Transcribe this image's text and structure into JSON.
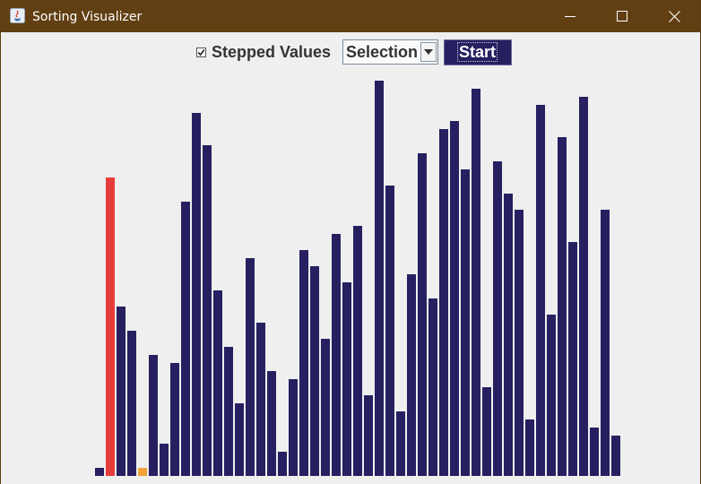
{
  "window": {
    "title": "Sorting Visualizer"
  },
  "controls": {
    "stepped_label": "Stepped Values",
    "stepped_checked": true,
    "algorithm_selected": "Selection",
    "start_label": "Start"
  },
  "colors": {
    "bar_default": "#262060",
    "bar_current": "#e63d3a",
    "bar_compare": "#f5a339"
  },
  "chart_data": {
    "type": "bar",
    "title": "",
    "xlabel": "",
    "ylabel": "",
    "ylim": [
      0,
      49
    ],
    "values": [
      1,
      37,
      21,
      18,
      1,
      15,
      4,
      14,
      34,
      45,
      41,
      23,
      16,
      9,
      27,
      19,
      13,
      3,
      12,
      28,
      26,
      17,
      30,
      24,
      31,
      10,
      49,
      36,
      8,
      25,
      40,
      22,
      43,
      44,
      38,
      48,
      11,
      39,
      35,
      33,
      7,
      46,
      20,
      42,
      29,
      47,
      6,
      33,
      5
    ],
    "current_index": 1,
    "compare_index": 4
  }
}
